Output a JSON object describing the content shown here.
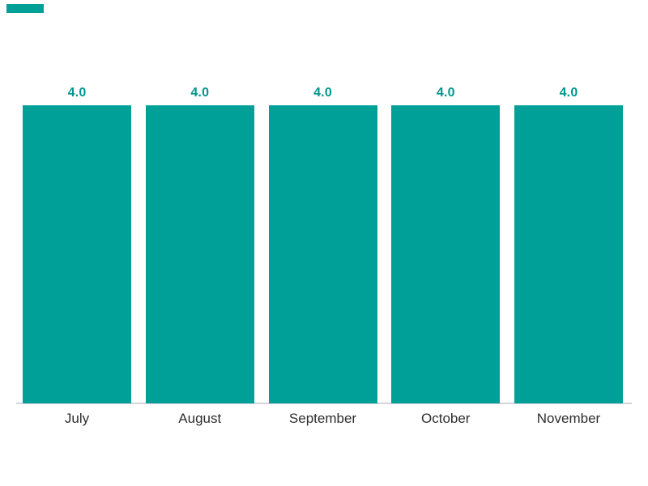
{
  "accent": {
    "color": "#00A099"
  },
  "chart_data": {
    "type": "bar",
    "title": "",
    "xlabel": "",
    "ylabel": "",
    "categories": [
      "July",
      "August",
      "September",
      "October",
      "November"
    ],
    "values": [
      4.0,
      4.0,
      4.0,
      4.0,
      4.0
    ],
    "value_labels": [
      "4.0",
      "4.0",
      "4.0",
      "4.0",
      "4.0"
    ],
    "ylim": [
      0,
      4
    ],
    "grid": false,
    "legend": false,
    "bar_color": "#00A099",
    "value_label_color": "#00968F",
    "axis_line_color": "#D4D4DC",
    "category_label_color": "#2E2E2E"
  }
}
